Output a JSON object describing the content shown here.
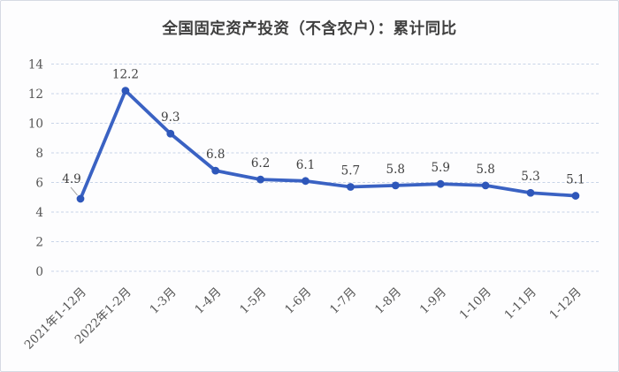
{
  "chart_data": {
    "type": "line",
    "title": "全国固定资产投资（不含农户）：累计同比",
    "categories": [
      "2021年1-12月",
      "2022年1-2月",
      "1-3月",
      "1-4月",
      "1-5月",
      "1-6月",
      "1-7月",
      "1-8月",
      "1-9月",
      "1-10月",
      "1-11月",
      "1-12月"
    ],
    "values": [
      4.9,
      12.2,
      9.3,
      6.8,
      6.2,
      6.1,
      5.7,
      5.8,
      5.9,
      5.8,
      5.3,
      5.1
    ],
    "data_labels": [
      "4.9",
      "12.2",
      "9.3",
      "6.8",
      "6.2",
      "6.1",
      "5.7",
      "5.8",
      "5.9",
      "5.8",
      "5.3",
      "5.1"
    ],
    "yticks": [
      "0",
      "2",
      "4",
      "6",
      "8",
      "10",
      "12",
      "14"
    ],
    "ylim": [
      0,
      14
    ],
    "xlabel": "",
    "ylabel": "",
    "grid": "horizontal-dashed",
    "legend": "none",
    "colors": {
      "line": "#3a62c3",
      "marker": "#2e57ba",
      "gridline": "#c8d4e8",
      "title": "#3f3f3f",
      "data_label": "#404040",
      "axis_label": "#555555",
      "leader_line": "#a0a0a0",
      "background": "#fdfdfe",
      "border": "#d6dae3"
    }
  }
}
